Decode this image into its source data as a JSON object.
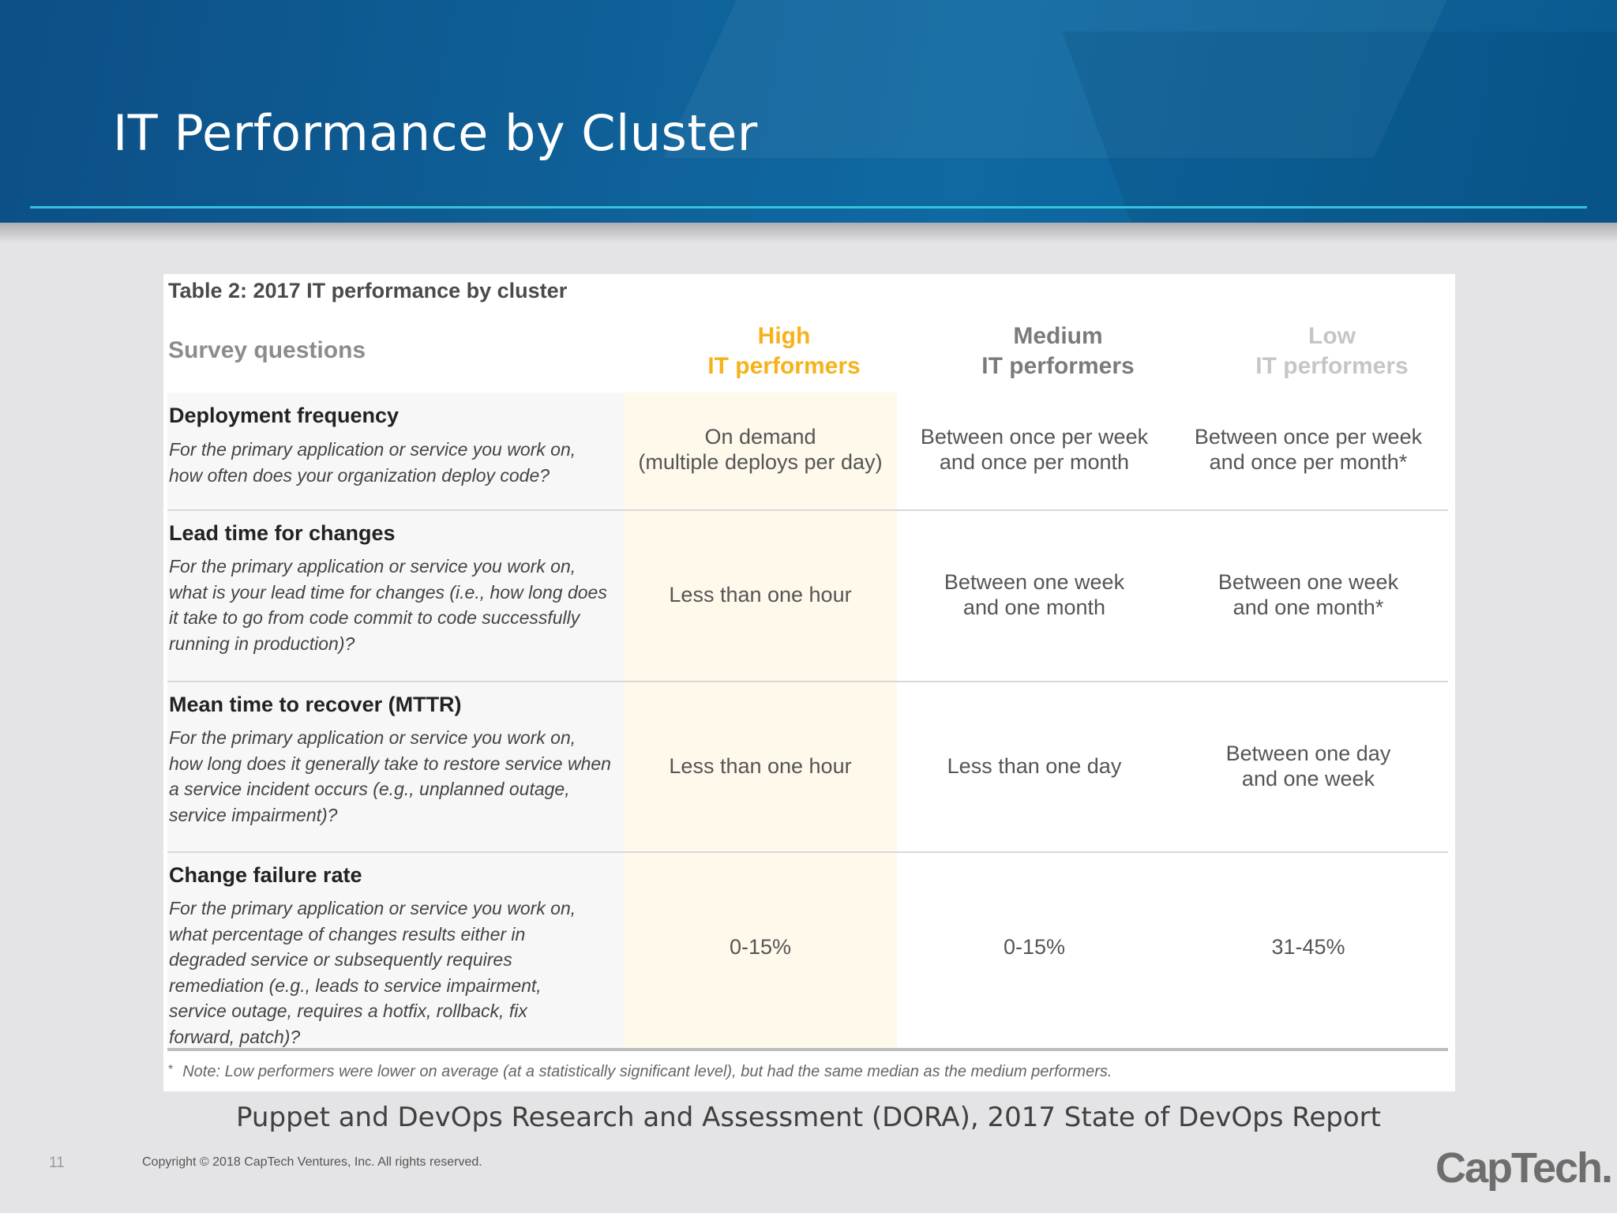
{
  "slide": {
    "title": "IT Performance by Cluster",
    "source": "Puppet and DevOps Research and Assessment (DORA), 2017 State of DevOps Report",
    "page_number": "11",
    "copyright": "Copyright © 2018 CapTech Ventures, Inc. All rights reserved.",
    "logo_text": "CapTech."
  },
  "table": {
    "caption": "Table 2: 2017 IT performance by cluster",
    "survey_header": "Survey questions",
    "columns": [
      {
        "line1": "High",
        "line2": "IT performers",
        "color": "#f6b21b"
      },
      {
        "line1": "Medium",
        "line2": "IT performers",
        "color": "#7b7b7b"
      },
      {
        "line1": "Low",
        "line2": "IT performers",
        "color": "#c6c6c6"
      }
    ],
    "rows": [
      {
        "title": "Deployment frequency",
        "description": "For the primary application or service you work on, how often does your organization deploy code?",
        "high": [
          "On demand",
          "(multiple deploys per day)"
        ],
        "medium": [
          "Between once per week",
          "and once per month"
        ],
        "low": [
          "Between once per week",
          "and once per month*"
        ]
      },
      {
        "title": "Lead time for changes",
        "description": "For the primary application or service you work on, what is your lead time for changes (i.e., how long does it take to go from code commit to code successfully running in production)?",
        "high": [
          "Less than one hour"
        ],
        "medium": [
          "Between one week",
          "and one month"
        ],
        "low": [
          "Between one week",
          "and one month*"
        ]
      },
      {
        "title": "Mean time to recover (MTTR)",
        "description": "For the primary application or service you work on, how long does it generally take to restore service when a service incident occurs (e.g., unplanned outage, service impairment)?",
        "high": [
          "Less than one hour"
        ],
        "medium": [
          "Less than one day"
        ],
        "low": [
          "Between one day",
          "and one week"
        ]
      },
      {
        "title": "Change failure rate",
        "description": "For the primary application or service you work on, what percentage of changes results either in degraded service or subsequently requires remediation (e.g., leads to service impairment, service outage, requires a hotfix, rollback, fix forward, patch)?",
        "high": [
          "0-15%"
        ],
        "medium": [
          "0-15%"
        ],
        "low": [
          "31-45%"
        ]
      }
    ],
    "note_marker": "*",
    "note": "Note: Low performers were lower on average (at a statistically significant level), but had the same median as the medium performers."
  }
}
